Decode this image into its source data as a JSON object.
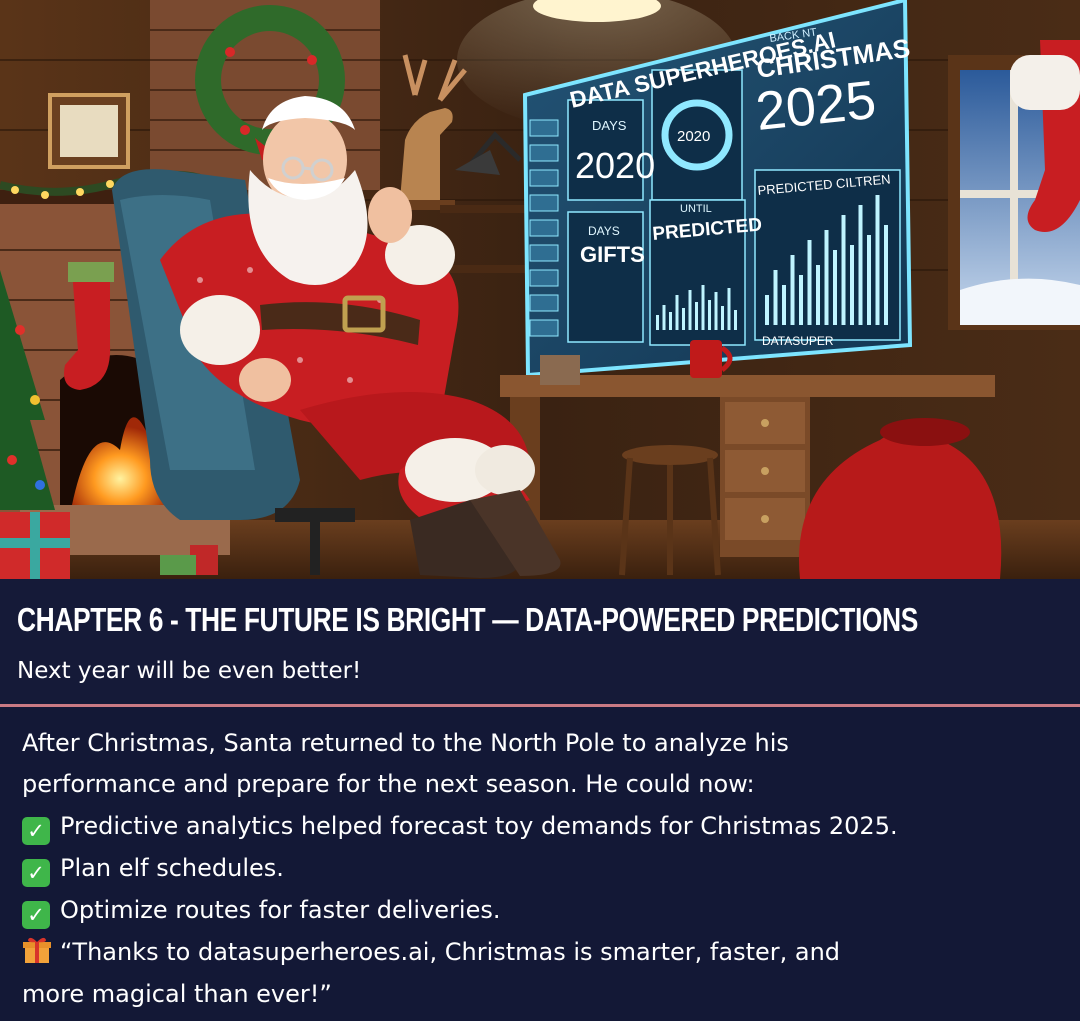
{
  "illustration": {
    "screen_header": "DATA SUPERHEROES.AI",
    "screen_christmas": "CHRISTMAS",
    "screen_year": "2025",
    "screen_back": "BACK NT",
    "screen_days": "DAYS",
    "screen_days_value": "2020",
    "screen_ring_value": "2020",
    "screen_gifts_days": "DAYS",
    "screen_gifts": "GIFTS",
    "screen_until": "UNTIL",
    "screen_predicted": "PREDICTED",
    "screen_predicted_children": "PREDICTED CILTREN",
    "screen_footer": "DATASUPER"
  },
  "caption": {
    "title": "CHAPTER 6 - THE FUTURE IS BRIGHT — DATA-POWERED PREDICTIONS",
    "subtitle": "Next year will be even better!"
  },
  "story": {
    "intro_line1": "After Christmas, Santa returned to the North Pole to analyze his",
    "intro_line2": "performance and prepare for the next season. He could now:",
    "bullets": [
      "Predictive analytics helped forecast toy demands for Christmas 2025.",
      "Plan elf schedules.",
      "Optimize routes for faster deliveries."
    ],
    "quote_line1": "“Thanks to datasuperheroes.ai, Christmas is smarter, faster, and",
    "quote_line2": "more magical than ever!”"
  },
  "colors": {
    "background": "#131836",
    "divider": "#c97a84",
    "check": "#3fb64a",
    "screen_glow": "#7fe6ff"
  }
}
